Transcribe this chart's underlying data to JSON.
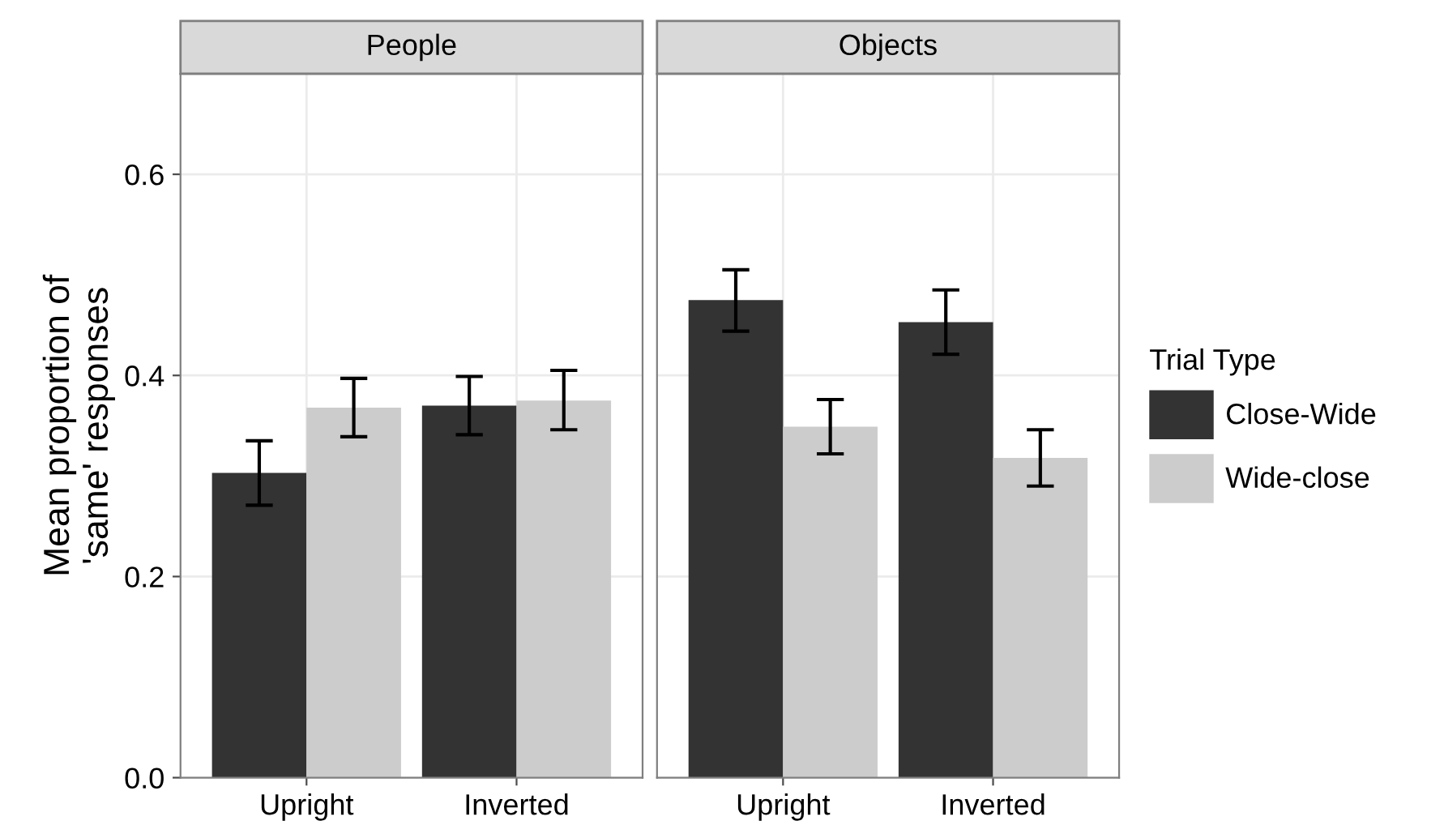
{
  "chart_data": [
    {
      "type": "bar",
      "title": "People",
      "ylabel": "Mean proportion of\n'same' responses",
      "categories": [
        "Upright",
        "Inverted"
      ],
      "ylim": [
        0,
        0.7
      ],
      "yticks": [
        {
          "value": 0,
          "label": "0.0"
        },
        0.2,
        0.4,
        0.6
      ],
      "grid": true,
      "legend": false,
      "series": [
        {
          "color": "#333333",
          "values": [
            0.303,
            0.37
          ],
          "errors": [
            [
              0.271,
              0.335
            ],
            [
              0.341,
              0.399
            ]
          ]
        },
        {
          "color": "#cccccc",
          "values": [
            0.368,
            0.375
          ],
          "errors": [
            [
              0.339,
              0.397
            ],
            [
              0.346,
              0.405
            ]
          ]
        }
      ]
    },
    {
      "type": "bar",
      "title": "Objects",
      "legend_title": "Trial Type",
      "categories": [
        "Upright",
        "Inverted"
      ],
      "ylim": [
        0,
        0.7
      ],
      "yticks": [
        {
          "value": 0,
          "label": null
        },
        {
          "value": 0.2,
          "label": null
        },
        {
          "value": 0.4,
          "label": null
        },
        {
          "value": 0.6,
          "label": null
        }
      ],
      "tick_labels": "x",
      "grid": true,
      "legend": "right",
      "series": [
        {
          "name": "Close-Wide",
          "color": "#333333",
          "values": [
            0.475,
            0.453
          ],
          "errors": [
            [
              0.444,
              0.505
            ],
            [
              0.421,
              0.485
            ]
          ]
        },
        {
          "name": "Wide-close",
          "color": "#cccccc",
          "values": [
            0.349,
            0.318
          ],
          "errors": [
            [
              0.322,
              0.376
            ],
            [
              0.29,
              0.346
            ]
          ]
        }
      ]
    }
  ]
}
